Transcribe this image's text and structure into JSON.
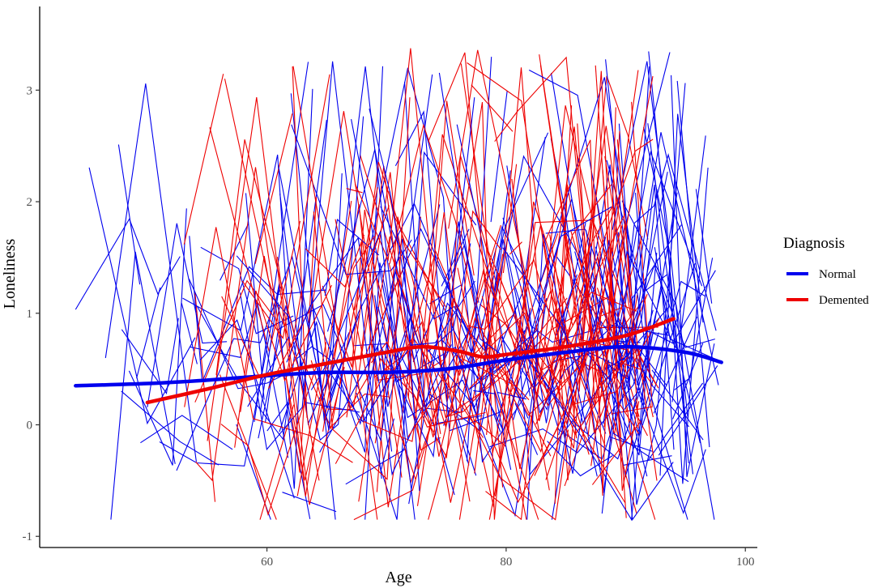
{
  "chart_data": {
    "type": "line",
    "title": "",
    "xlabel": "Age",
    "ylabel": "Loneliness",
    "xlim": [
      41,
      101
    ],
    "ylim": [
      -1.1,
      3.75
    ],
    "x_ticks": [
      60,
      80,
      100
    ],
    "y_ticks": [
      -1,
      0,
      1,
      2,
      3
    ],
    "grid": false,
    "legend": {
      "title": "Diagnosis",
      "placement": "right",
      "entries": [
        {
          "label": "Normal",
          "color": "#0000EE"
        },
        {
          "label": "Demented",
          "color": "#EE0000"
        }
      ]
    },
    "series": [
      {
        "name": "Normal",
        "color": "#0000EE",
        "smooth_x": [
          44,
          50,
          55,
          60,
          65,
          70,
          75,
          80,
          85,
          90,
          95,
          98
        ],
        "smooth_y": [
          0.35,
          0.37,
          0.4,
          0.44,
          0.47,
          0.47,
          0.5,
          0.58,
          0.65,
          0.7,
          0.65,
          0.56
        ]
      },
      {
        "name": "Demented",
        "color": "#EE0000",
        "smooth_x": [
          50,
          55,
          60,
          65,
          70,
          73,
          76,
          78,
          80,
          85,
          90,
          94
        ],
        "smooth_y": [
          0.2,
          0.32,
          0.45,
          0.55,
          0.65,
          0.7,
          0.66,
          0.61,
          0.63,
          0.7,
          0.8,
          0.95
        ]
      }
    ],
    "individual_trajectories_note": ""
  }
}
